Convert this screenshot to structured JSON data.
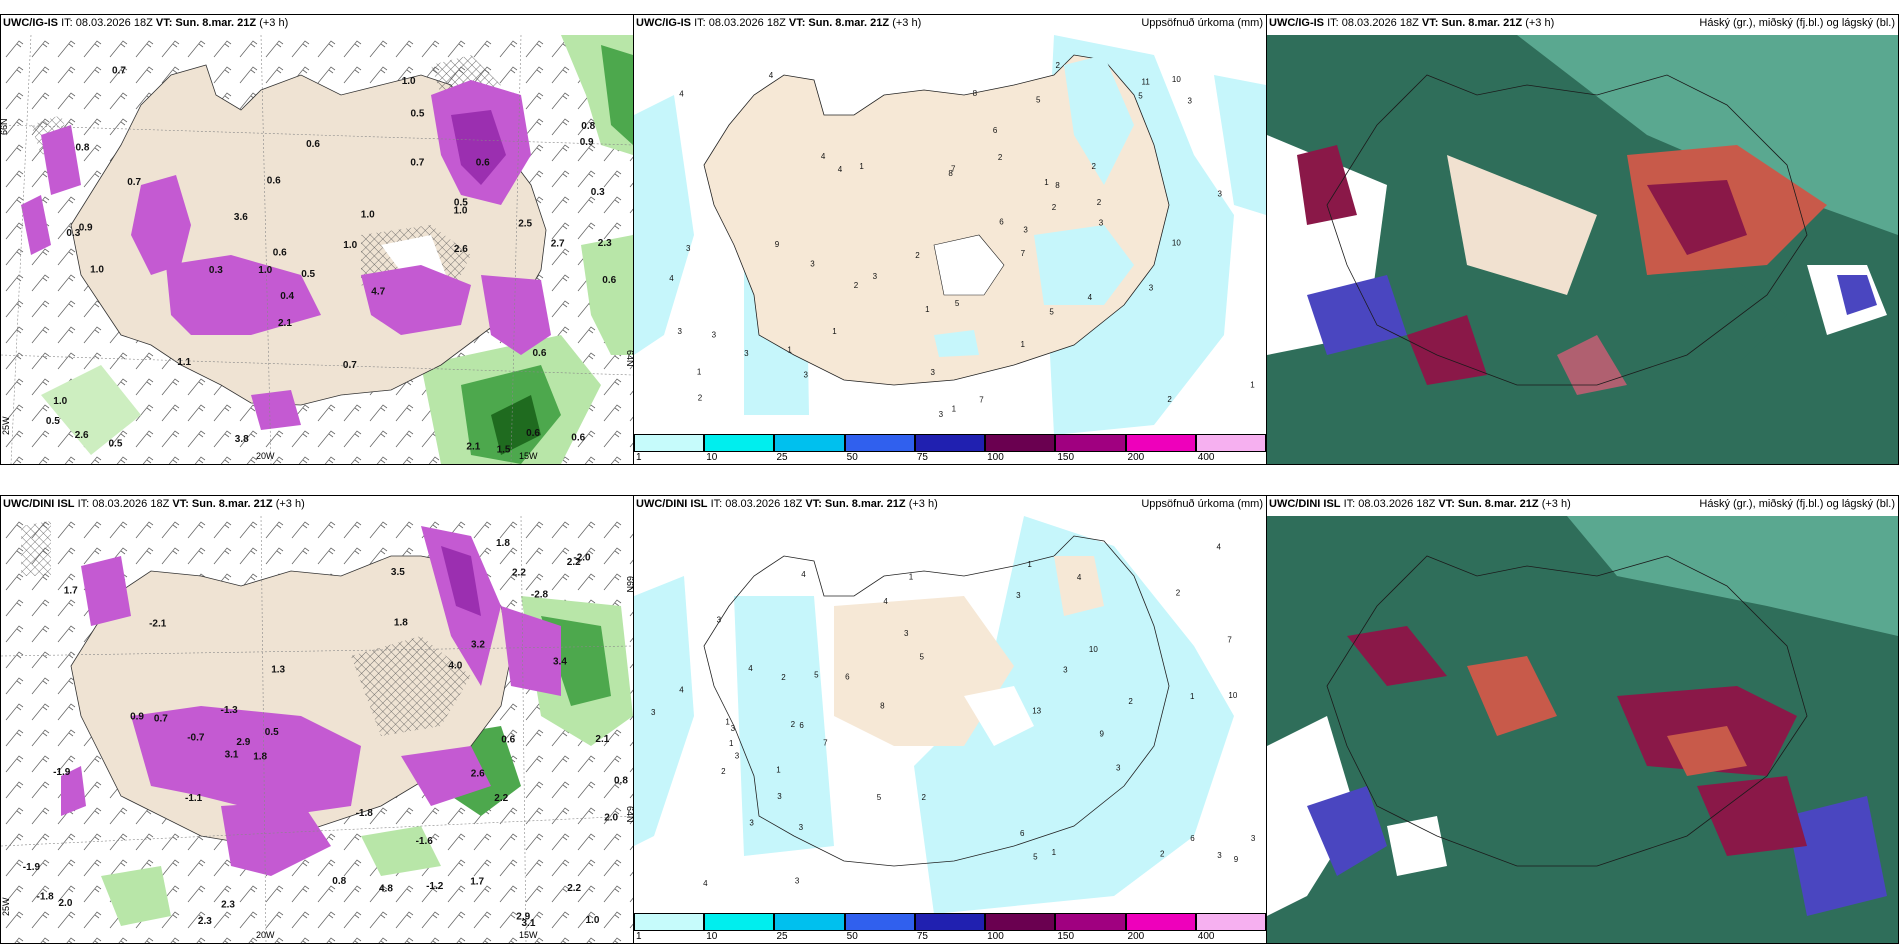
{
  "panels": [
    {
      "id": "p1",
      "model": "UWC/IG-IS",
      "it": "IT: 08.03.2026 18Z",
      "vt": "VT: Sun. 8.mar. 21Z",
      "lead": "(+3 h)",
      "right": ""
    },
    {
      "id": "p2",
      "model": "UWC/IG-IS",
      "it": "IT: 08.03.2026 18Z",
      "vt": "VT: Sun. 8.mar. 21Z",
      "lead": "(+3 h)",
      "right": "Uppsöfnuð úrkoma (mm)"
    },
    {
      "id": "p3",
      "model": "UWC/IG-IS",
      "it": "IT: 08.03.2026 18Z",
      "vt": "VT: Sun. 8.mar. 21Z",
      "lead": "(+3 h)",
      "right": "Háský (gr.), miðský (fj.bl.) og lágský (bl.)"
    },
    {
      "id": "p4",
      "model": "UWC/DINI ISL",
      "it": "IT: 08.03.2026 18Z",
      "vt": "VT: Sun. 8.mar. 21Z",
      "lead": "(+3 h)",
      "right": ""
    },
    {
      "id": "p5",
      "model": "UWC/DINI ISL",
      "it": "IT: 08.03.2026 18Z",
      "vt": "VT: Sun. 8.mar. 21Z",
      "lead": "(+3 h)",
      "right": "Uppsöfnuð úrkoma (mm)"
    },
    {
      "id": "p6",
      "model": "UWC/DINI ISL",
      "it": "IT: 08.03.2026 18Z",
      "vt": "VT: Sun. 8.mar. 21Z",
      "lead": "(+3 h)",
      "right": "Háský (gr.), miðský (fj.bl.) og lágský (bl.)"
    }
  ],
  "colorbar": {
    "labels": [
      "1",
      "10",
      "25",
      "50",
      "75",
      "100",
      "150",
      "200",
      "400"
    ],
    "colors": [
      "#c6fbfb",
      "#00eeee",
      "#00c0ee",
      "#3060ee",
      "#2020b0",
      "#6a0050",
      "#a00080",
      "#ee00bb",
      "#f6b0f0"
    ]
  },
  "axis_labels": {
    "top": {
      "lat66": "66N",
      "lat64": "64N",
      "lon20": "20W",
      "lon15": "15W",
      "lon25": "25W"
    },
    "bottom": {
      "lat66": "66N",
      "lat64": "64N",
      "lon20": "20W",
      "lon15": "15W",
      "lon25": "25W"
    }
  },
  "precip_values_top": [
    "0.6",
    "0.6",
    "0.4",
    "2.1",
    "0.6",
    "3.8",
    "2.6",
    "2.3",
    "2.5",
    "0.3",
    "0.5",
    "0.7",
    "2.6",
    "4.7",
    "2.1",
    "3.6",
    "2.7",
    "0.6",
    "0.3",
    "0.3",
    "0.6",
    "0.9",
    "1.0",
    "0.5",
    "0.7",
    "1.0",
    "1.5",
    "0.5",
    "0.8",
    "0.6",
    "1.0",
    "1.0",
    "1.1",
    "1.0",
    "0.6",
    "0.5",
    "1.0",
    "0.7",
    "0.6",
    "0.9",
    "0.8",
    "1.0",
    "0.7",
    "0.5"
  ],
  "precip_values_bottom": [
    "2.9",
    "2.2",
    "1.8",
    "1.8",
    "4.0",
    "0.9",
    "1.7",
    "3.5",
    "2.2",
    "2.6",
    "2.1",
    "1.0",
    "3.2",
    "2.0",
    "2.0",
    "0.5",
    "-1.1",
    "-2.1",
    "-1.9",
    "-2.0",
    "-1.9",
    "-1.8",
    "-1.3",
    "-1.2",
    "-1.6",
    "-2.8",
    "-1.8",
    "-0.7",
    "0.6",
    "0.8",
    "0.7",
    "0.8",
    "2.3",
    "2.9",
    "3.1",
    "2.2",
    "1.3",
    "4.8",
    "3.4",
    "2.3",
    "1.8",
    "3.1",
    "2.2",
    "1.7"
  ],
  "accum_values_top": [
    "1",
    "2",
    "5",
    "3",
    "3",
    "3",
    "4",
    "3",
    "1",
    "3",
    "2",
    "5",
    "7",
    "2",
    "3",
    "4",
    "3",
    "2",
    "8",
    "2",
    "3",
    "3",
    "3",
    "1",
    "2",
    "1",
    "1",
    "2",
    "5",
    "3",
    "5",
    "3",
    "11",
    "10",
    "10",
    "6",
    "6",
    "3",
    "8",
    "4",
    "7",
    "4",
    "4",
    "1",
    "2",
    "1",
    "9",
    "3",
    "8",
    "7",
    "4",
    "2",
    "1",
    "1"
  ],
  "accum_values_bottom": [
    "1",
    "3",
    "2",
    "2",
    "1",
    "3",
    "13",
    "3",
    "3",
    "4",
    "4",
    "2",
    "3",
    "3",
    "3",
    "4",
    "4",
    "4",
    "1",
    "2",
    "4",
    "3",
    "3",
    "2",
    "3",
    "5",
    "7",
    "1",
    "6",
    "6",
    "5",
    "7",
    "8",
    "9",
    "10",
    "9",
    "10",
    "5",
    "6",
    "3",
    "4",
    "5",
    "6",
    "3",
    "2",
    "3",
    "2",
    "1",
    "3",
    "1",
    "1"
  ]
}
